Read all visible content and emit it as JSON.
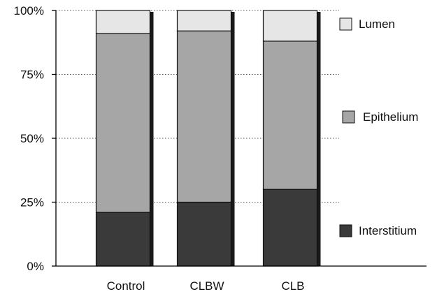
{
  "chart_data": {
    "type": "bar",
    "stacked": true,
    "categories": [
      "Control",
      "CLBW",
      "CLB"
    ],
    "series": [
      {
        "name": "Interstitium",
        "values": [
          21,
          25,
          30
        ],
        "color": "#3a3a3a"
      },
      {
        "name": "Epithelium",
        "values": [
          70,
          67,
          58
        ],
        "color": "#a6a6a6"
      },
      {
        "name": "Lumen",
        "values": [
          9,
          8,
          12
        ],
        "color": "#e6e6e6"
      }
    ],
    "y_ticks": [
      "0%",
      "25%",
      "50%",
      "75%",
      "100%"
    ],
    "ylim": [
      0,
      100
    ],
    "grid": "dotted horizontal",
    "legend": "right",
    "title": "",
    "xlabel": "",
    "ylabel": ""
  }
}
